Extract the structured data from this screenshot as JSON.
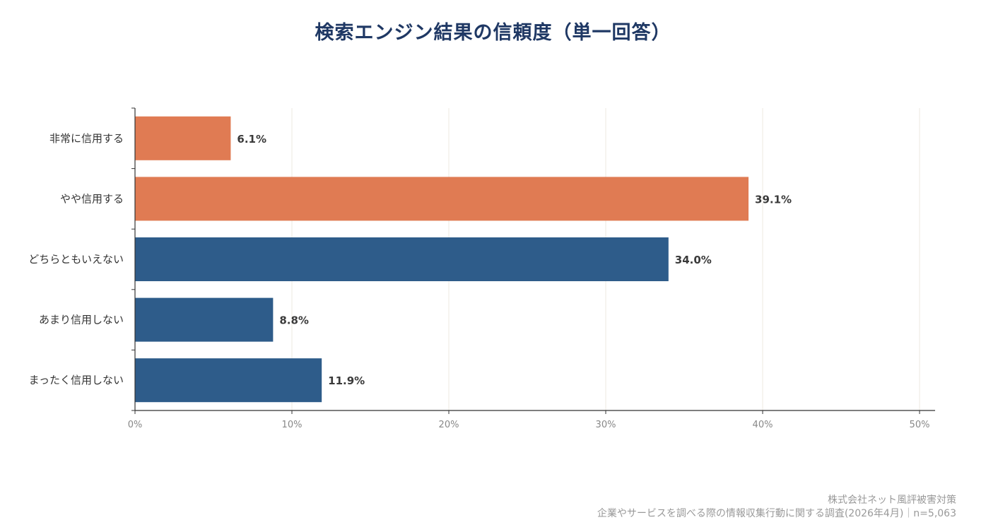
{
  "colors": {
    "positive": "#e07b53",
    "neutral_negative": "#2e5c8a",
    "title": "#1f3864",
    "grid": "#ece8e0",
    "axis": "#333333",
    "tick_label": "#888888",
    "category_label": "#333333",
    "value_label": "#3a3a3a",
    "footer": "#999999"
  },
  "footer": {
    "source": "株式会社ネット風評被害対策",
    "survey": "企業やサービスを調べる際の情報収集行動に関する調査(2026年4月)｜n=5,063"
  },
  "chart_data": {
    "type": "bar",
    "orientation": "horizontal",
    "title": "検索エンジン結果の信頼度（単一回答）",
    "categories": [
      "非常に信用する",
      "やや信用する",
      "どちらともいえない",
      "あまり信用しない",
      "まったく信用しない"
    ],
    "values": [
      6.1,
      39.1,
      34.0,
      8.8,
      11.9
    ],
    "value_labels": [
      "6.1%",
      "39.1%",
      "34.0%",
      "8.8%",
      "11.9%"
    ],
    "bar_colors": [
      "#e07b53",
      "#e07b53",
      "#2e5c8a",
      "#2e5c8a",
      "#2e5c8a"
    ],
    "xlim": [
      0,
      50
    ],
    "x_ticks": [
      0,
      10,
      20,
      30,
      40,
      50
    ],
    "x_tick_labels": [
      "0%",
      "10%",
      "20%",
      "30%",
      "40%",
      "50%"
    ],
    "grid": true,
    "xlabel": "",
    "ylabel": ""
  }
}
